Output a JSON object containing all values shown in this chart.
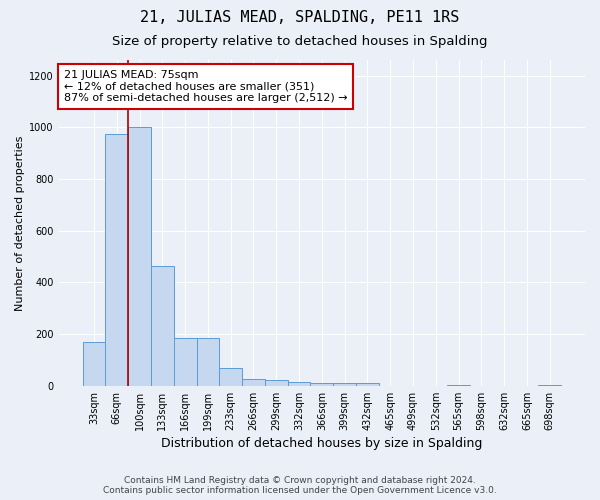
{
  "title": "21, JULIAS MEAD, SPALDING, PE11 1RS",
  "subtitle": "Size of property relative to detached houses in Spalding",
  "xlabel": "Distribution of detached houses by size in Spalding",
  "ylabel": "Number of detached properties",
  "footer_line1": "Contains HM Land Registry data © Crown copyright and database right 2024.",
  "footer_line2": "Contains public sector information licensed under the Open Government Licence v3.0.",
  "bar_categories": [
    "33sqm",
    "66sqm",
    "100sqm",
    "133sqm",
    "166sqm",
    "199sqm",
    "233sqm",
    "266sqm",
    "299sqm",
    "332sqm",
    "366sqm",
    "399sqm",
    "432sqm",
    "465sqm",
    "499sqm",
    "532sqm",
    "565sqm",
    "598sqm",
    "632sqm",
    "665sqm",
    "698sqm"
  ],
  "bar_values": [
    170,
    975,
    1000,
    462,
    185,
    185,
    68,
    25,
    22,
    15,
    12,
    10,
    12,
    0,
    0,
    0,
    3,
    0,
    0,
    0,
    3
  ],
  "bar_color": "#c5d8f0",
  "bar_edge_color": "#5b9bd5",
  "vline_x": 1.5,
  "vline_color": "#aa0000",
  "annotation_text": "21 JULIAS MEAD: 75sqm\n← 12% of detached houses are smaller (351)\n87% of semi-detached houses are larger (2,512) →",
  "annotation_box_color": "#ffffff",
  "annotation_box_edge_color": "#cc0000",
  "ylim": [
    0,
    1260
  ],
  "yticks": [
    0,
    200,
    400,
    600,
    800,
    1000,
    1200
  ],
  "background_color": "#eaeff8",
  "grid_color": "#ffffff",
  "title_fontsize": 11,
  "subtitle_fontsize": 9.5,
  "annot_fontsize": 8,
  "xlabel_fontsize": 9,
  "ylabel_fontsize": 8,
  "tick_fontsize": 7,
  "footer_fontsize": 6.5
}
